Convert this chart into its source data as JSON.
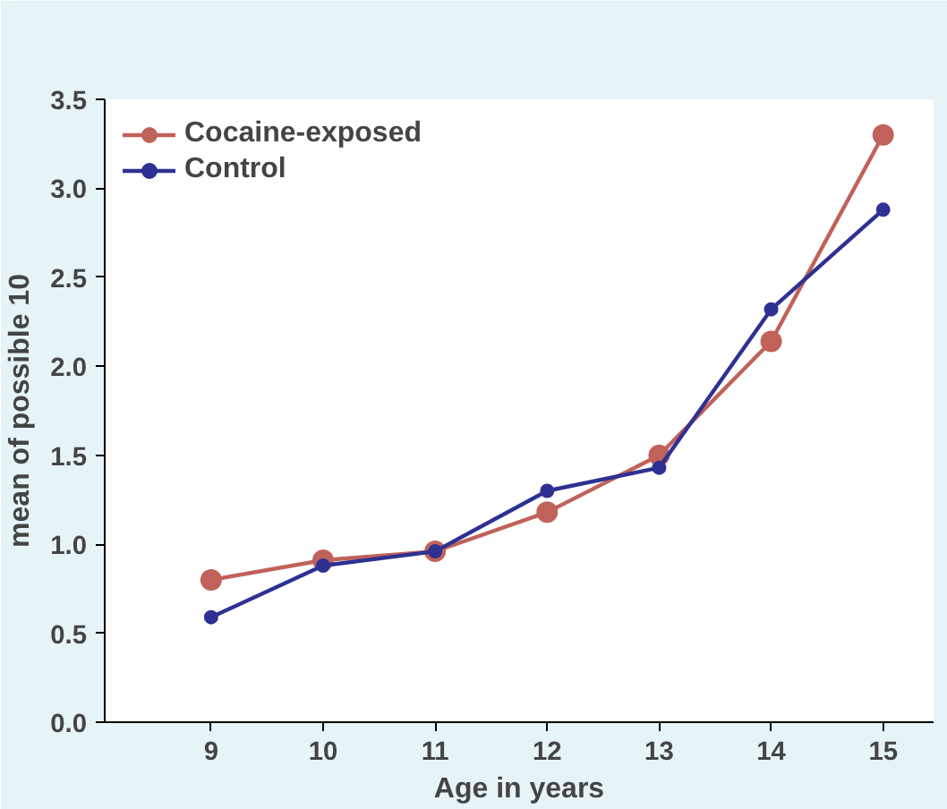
{
  "chart_data": {
    "type": "line",
    "xlabel": "Age in years",
    "ylabel": "mean of possible 10",
    "x": [
      9,
      10,
      11,
      12,
      13,
      14,
      15
    ],
    "series": [
      {
        "name": "Cocaine-exposed",
        "color": "#c0625a",
        "values": [
          0.8,
          0.91,
          0.96,
          1.18,
          1.5,
          2.14,
          3.3
        ]
      },
      {
        "name": "Control",
        "color": "#2e3192",
        "values": [
          0.59,
          0.88,
          0.96,
          1.3,
          1.43,
          2.32,
          2.88
        ]
      }
    ],
    "xlim": [
      8.05,
      15.45
    ],
    "xticks": [
      9,
      10,
      11,
      12,
      13,
      14,
      15
    ],
    "ylim": [
      0,
      3.5
    ],
    "yticks": [
      {
        "value": 0,
        "label": "0.0"
      },
      0.5,
      {
        "value": 1,
        "label": "1.0"
      },
      1.5,
      {
        "value": 2,
        "label": "2.0"
      },
      2.5,
      {
        "value": 3,
        "label": "3.0"
      },
      3.5
    ],
    "grid": false,
    "legend": "top left",
    "marker": "circle",
    "line_style": "solid"
  }
}
